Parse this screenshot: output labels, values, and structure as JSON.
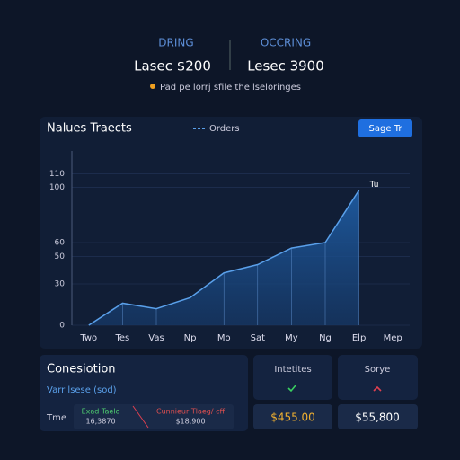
{
  "header": {
    "left": {
      "label": "DRING",
      "value": "Lasec $200"
    },
    "right": {
      "label": "OCCRING",
      "value": "Lesec 3900"
    },
    "note": "Pad pe lorrj sfile the lseloringes"
  },
  "panel": {
    "title": "Nalues Traects",
    "button": "Sage Tr"
  },
  "chart_data": {
    "type": "line",
    "series": [
      {
        "name": "Orders",
        "color": "#5aa0ea",
        "values": [
          0,
          16,
          12,
          20,
          38,
          44,
          56,
          60,
          98,
          null
        ]
      }
    ],
    "categories": [
      "Two",
      "Tes",
      "Vas",
      "Np",
      "Mo",
      "Sat",
      "My",
      "Ng",
      "Elp",
      "Mep"
    ],
    "ylim": [
      0,
      120
    ],
    "yticks": [
      0,
      30,
      50,
      60,
      100,
      110
    ],
    "grid": true,
    "annotation": "Tu"
  },
  "summary": {
    "title": "Conesiotion",
    "subtitle": "Varr lsese (sod)",
    "row_label": "Tme",
    "items": [
      {
        "label": "Exad Taelo",
        "value": "16,3870"
      },
      {
        "label": "Cunnieur Tlaeg/ cff",
        "value": "$18,900"
      }
    ]
  },
  "cards": [
    {
      "label": "Intetites",
      "value": "$455.00"
    },
    {
      "label": "Sorye",
      "value": "$55,800"
    }
  ]
}
